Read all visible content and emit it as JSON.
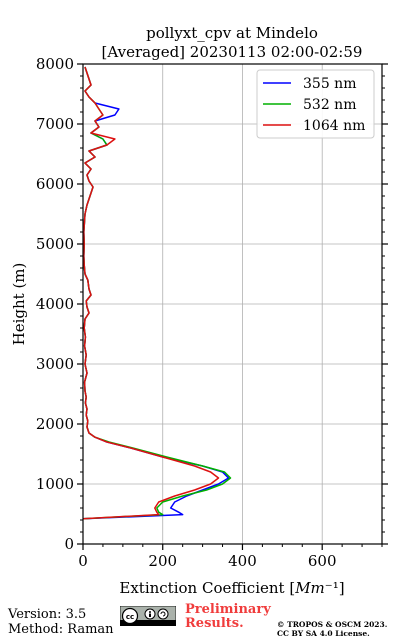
{
  "chart_data": {
    "type": "line",
    "title_line1": "pollyxt_cpv at Mindelo",
    "title_line2": "[Averaged] 20230113 02:00-02:59",
    "xlabel": "Extinction Coefficient [Mm⁻¹]",
    "ylabel": "Height (m)",
    "xlim": [
      0,
      750
    ],
    "ylim": [
      0,
      8000
    ],
    "xticks": [
      0,
      200,
      400,
      600
    ],
    "xtick_labels": [
      "0",
      "200",
      "400",
      "600"
    ],
    "yticks": [
      0,
      1000,
      2000,
      3000,
      4000,
      5000,
      6000,
      7000,
      8000
    ],
    "ytick_labels": [
      "0",
      "1000",
      "2000",
      "3000",
      "4000",
      "5000",
      "6000",
      "7000",
      "8000"
    ],
    "grid": true,
    "legend_position": "top-right",
    "series": [
      {
        "name": "355 nm",
        "color": "#0000ff",
        "x": [
          0,
          250,
          240,
          220,
          230,
          260,
          300,
          340,
          365,
          350,
          300,
          200,
          120,
          60,
          30,
          15,
          10,
          12,
          8,
          10,
          6,
          8,
          5,
          4,
          10,
          5,
          8,
          4,
          6,
          3,
          5,
          15,
          10,
          8,
          20,
          15,
          12,
          5,
          3,
          2,
          3,
          2,
          5,
          10,
          15,
          20,
          25,
          15,
          10,
          20,
          5,
          30,
          15,
          60,
          50,
          20,
          40,
          30,
          80,
          90,
          30,
          15,
          5,
          20,
          15,
          10,
          5
        ],
        "y": [
          420,
          490,
          530,
          600,
          700,
          800,
          900,
          1000,
          1100,
          1200,
          1300,
          1450,
          1600,
          1700,
          1780,
          1850,
          1950,
          2050,
          2150,
          2250,
          2350,
          2450,
          2550,
          2700,
          2850,
          3000,
          3150,
          3300,
          3450,
          3600,
          3750,
          3850,
          3950,
          4050,
          4150,
          4250,
          4400,
          4500,
          4650,
          4800,
          5000,
          5200,
          5500,
          5650,
          5750,
          5850,
          5950,
          6050,
          6150,
          6250,
          6350,
          6450,
          6550,
          6650,
          6750,
          6850,
          6950,
          7050,
          7150,
          7250,
          7350,
          7450,
          7550,
          7650,
          7750,
          7850,
          7950
        ]
      },
      {
        "name": "532 nm",
        "color": "#00b000",
        "x": [
          0,
          200,
          190,
          185,
          200,
          250,
          310,
          350,
          370,
          355,
          300,
          210,
          125,
          65,
          30,
          15,
          10,
          12,
          8,
          10,
          6,
          8,
          5,
          4,
          10,
          5,
          8,
          4,
          6,
          3,
          5,
          15,
          10,
          8,
          20,
          15,
          12,
          5,
          3,
          2,
          3,
          2,
          5,
          10,
          15,
          20,
          25,
          15,
          10,
          20,
          5,
          30,
          15,
          60,
          50,
          20,
          40,
          30,
          50,
          40,
          30,
          15,
          5,
          20,
          15,
          10,
          5
        ],
        "y": [
          420,
          490,
          530,
          600,
          700,
          800,
          900,
          1000,
          1100,
          1200,
          1300,
          1450,
          1600,
          1700,
          1780,
          1850,
          1950,
          2050,
          2150,
          2250,
          2350,
          2450,
          2550,
          2700,
          2850,
          3000,
          3150,
          3300,
          3450,
          3600,
          3750,
          3850,
          3950,
          4050,
          4150,
          4250,
          4400,
          4500,
          4650,
          4800,
          5000,
          5200,
          5500,
          5650,
          5750,
          5850,
          5950,
          6050,
          6150,
          6250,
          6350,
          6450,
          6550,
          6650,
          6750,
          6850,
          6950,
          7050,
          7150,
          7250,
          7350,
          7450,
          7550,
          7650,
          7750,
          7850,
          7950
        ]
      },
      {
        "name": "1064 nm",
        "color": "#dd1111",
        "x": [
          0,
          190,
          185,
          180,
          190,
          230,
          280,
          320,
          340,
          320,
          280,
          200,
          120,
          60,
          30,
          15,
          10,
          12,
          8,
          10,
          6,
          8,
          5,
          4,
          10,
          5,
          8,
          4,
          6,
          3,
          5,
          15,
          10,
          8,
          20,
          15,
          12,
          5,
          3,
          2,
          3,
          2,
          5,
          10,
          15,
          20,
          25,
          15,
          10,
          20,
          5,
          30,
          15,
          60,
          80,
          20,
          40,
          30,
          50,
          40,
          30,
          15,
          5,
          20,
          15,
          10,
          5
        ],
        "y": [
          420,
          490,
          530,
          600,
          700,
          800,
          900,
          1000,
          1100,
          1200,
          1300,
          1450,
          1600,
          1700,
          1780,
          1850,
          1950,
          2050,
          2150,
          2250,
          2350,
          2450,
          2550,
          2700,
          2850,
          3000,
          3150,
          3300,
          3450,
          3600,
          3750,
          3850,
          3950,
          4050,
          4150,
          4250,
          4400,
          4500,
          4650,
          4800,
          5000,
          5200,
          5500,
          5650,
          5750,
          5850,
          5950,
          6050,
          6150,
          6250,
          6350,
          6450,
          6550,
          6650,
          6750,
          6850,
          6950,
          7050,
          7150,
          7250,
          7350,
          7450,
          7550,
          7650,
          7750,
          7850,
          7950
        ]
      }
    ]
  },
  "footer": {
    "version": "Version: 3.5",
    "method": "Method: Raman",
    "preliminary_line1": "Preliminary",
    "preliminary_line2": "Results.",
    "copyright_line1": "© TROPOS & OSCM 2023.",
    "copyright_line2": "CC BY SA 4.0 License.",
    "license_badge_icon": "cc-by-sa-badge-icon"
  }
}
